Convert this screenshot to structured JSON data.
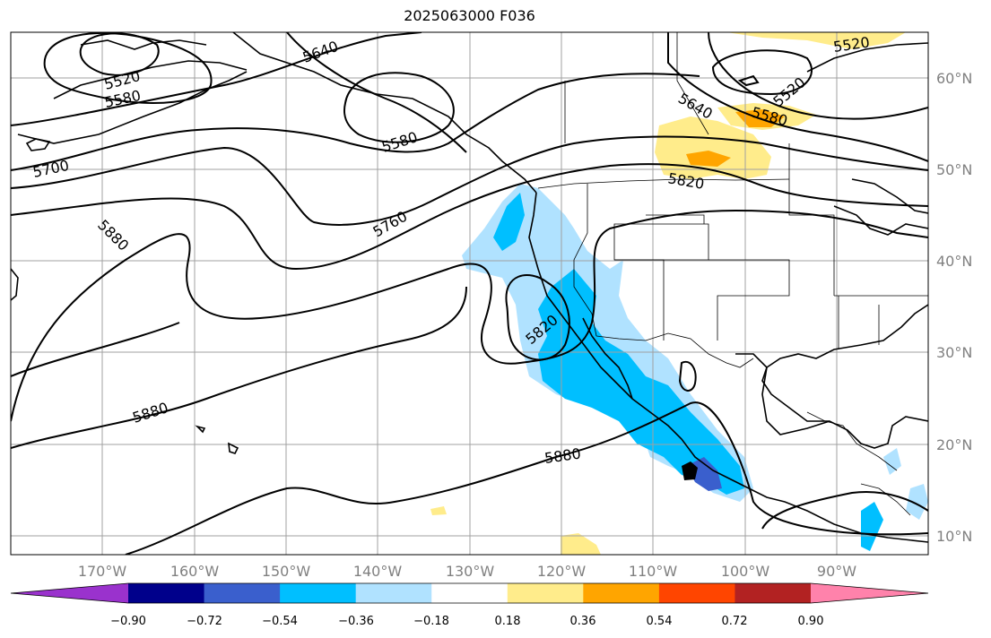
{
  "title": "2025063000 F036",
  "map": {
    "lon_labels": [
      "170°W",
      "160°W",
      "150°W",
      "140°W",
      "130°W",
      "120°W",
      "110°W",
      "100°W",
      "90°W"
    ],
    "lat_labels": [
      "60°N",
      "50°N",
      "40°N",
      "30°N",
      "20°N",
      "10°N"
    ],
    "contour_labels": [
      {
        "text": "5520",
        "key": "c5520a"
      },
      {
        "text": "5580",
        "key": "c5580a"
      },
      {
        "text": "5640",
        "key": "c5640a"
      },
      {
        "text": "5580",
        "key": "c5580b"
      },
      {
        "text": "5700",
        "key": "c5700"
      },
      {
        "text": "5880",
        "key": "c5880a"
      },
      {
        "text": "5760",
        "key": "c5760"
      },
      {
        "text": "5640",
        "key": "c5640b"
      },
      {
        "text": "5580",
        "key": "c5580c"
      },
      {
        "text": "5520",
        "key": "c5520b"
      },
      {
        "text": "5520",
        "key": "c5520c"
      },
      {
        "text": "5820",
        "key": "c5820a"
      },
      {
        "text": "5820",
        "key": "c5820b"
      },
      {
        "text": "5880",
        "key": "c5880b"
      },
      {
        "text": "5880",
        "key": "c5880c"
      }
    ]
  },
  "colorbar": {
    "colors": [
      "#9a32cd",
      "#00008b",
      "#3a5fcd",
      "#00bfff",
      "#b0e2ff",
      "#ffffff",
      "#ffec8b",
      "#ffa500",
      "#ff4500",
      "#b22222",
      "#ff82ab"
    ],
    "tick_labels": [
      "−0.90",
      "−0.72",
      "−0.54",
      "−0.36",
      "−0.18",
      "0.18",
      "0.36",
      "0.54",
      "0.72",
      "0.90"
    ]
  }
}
